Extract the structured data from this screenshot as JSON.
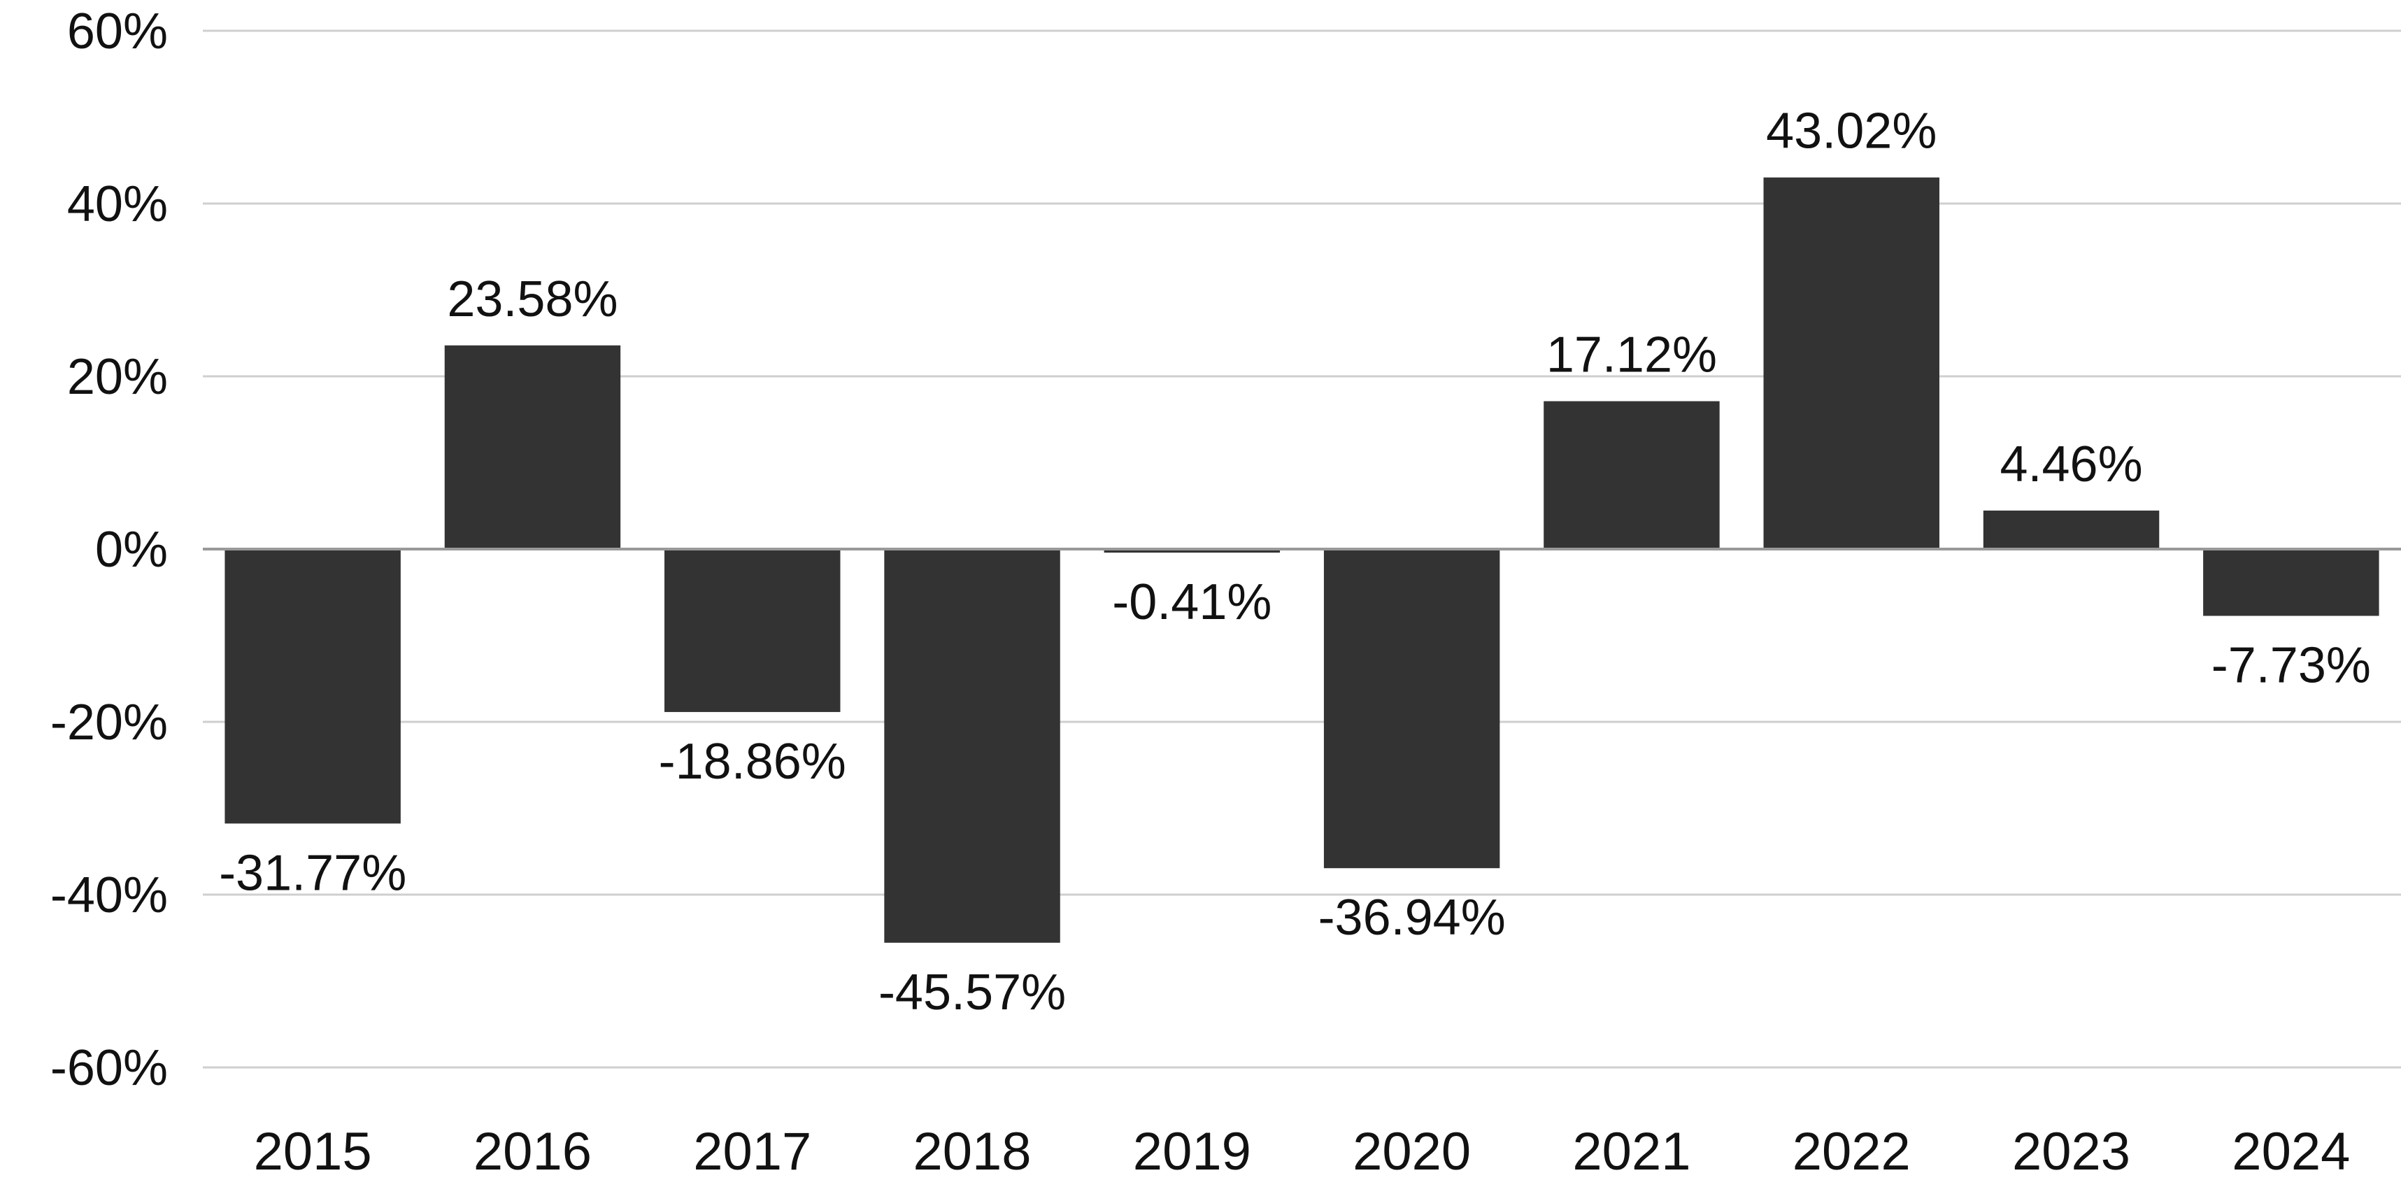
{
  "chart_data": {
    "type": "bar",
    "title": "",
    "xlabel": "",
    "ylabel": "",
    "categories": [
      "2015",
      "2016",
      "2017",
      "2018",
      "2019",
      "2020",
      "2021",
      "2022",
      "2023",
      "2024"
    ],
    "values": [
      -31.77,
      23.58,
      -18.86,
      -45.57,
      -0.41,
      -36.94,
      17.12,
      43.02,
      4.46,
      -7.73
    ],
    "value_labels": [
      "-31.77%",
      "23.58%",
      "-18.86%",
      "-45.57%",
      "-0.41%",
      "-36.94%",
      "17.12%",
      "43.02%",
      "4.46%",
      "-7.73%"
    ],
    "ylim": [
      -60,
      60
    ],
    "yticks": [
      60,
      40,
      20,
      0,
      -20,
      -40,
      -60
    ],
    "ytick_labels": [
      "60%",
      "40%",
      "20%",
      "0%",
      "-20%",
      "-40%",
      "-60%"
    ],
    "grid": true,
    "legend": "none",
    "colors": {
      "bar": "#333333",
      "grid": "#cfcfcf",
      "zero_line": "#999999",
      "text": "#111111"
    }
  }
}
